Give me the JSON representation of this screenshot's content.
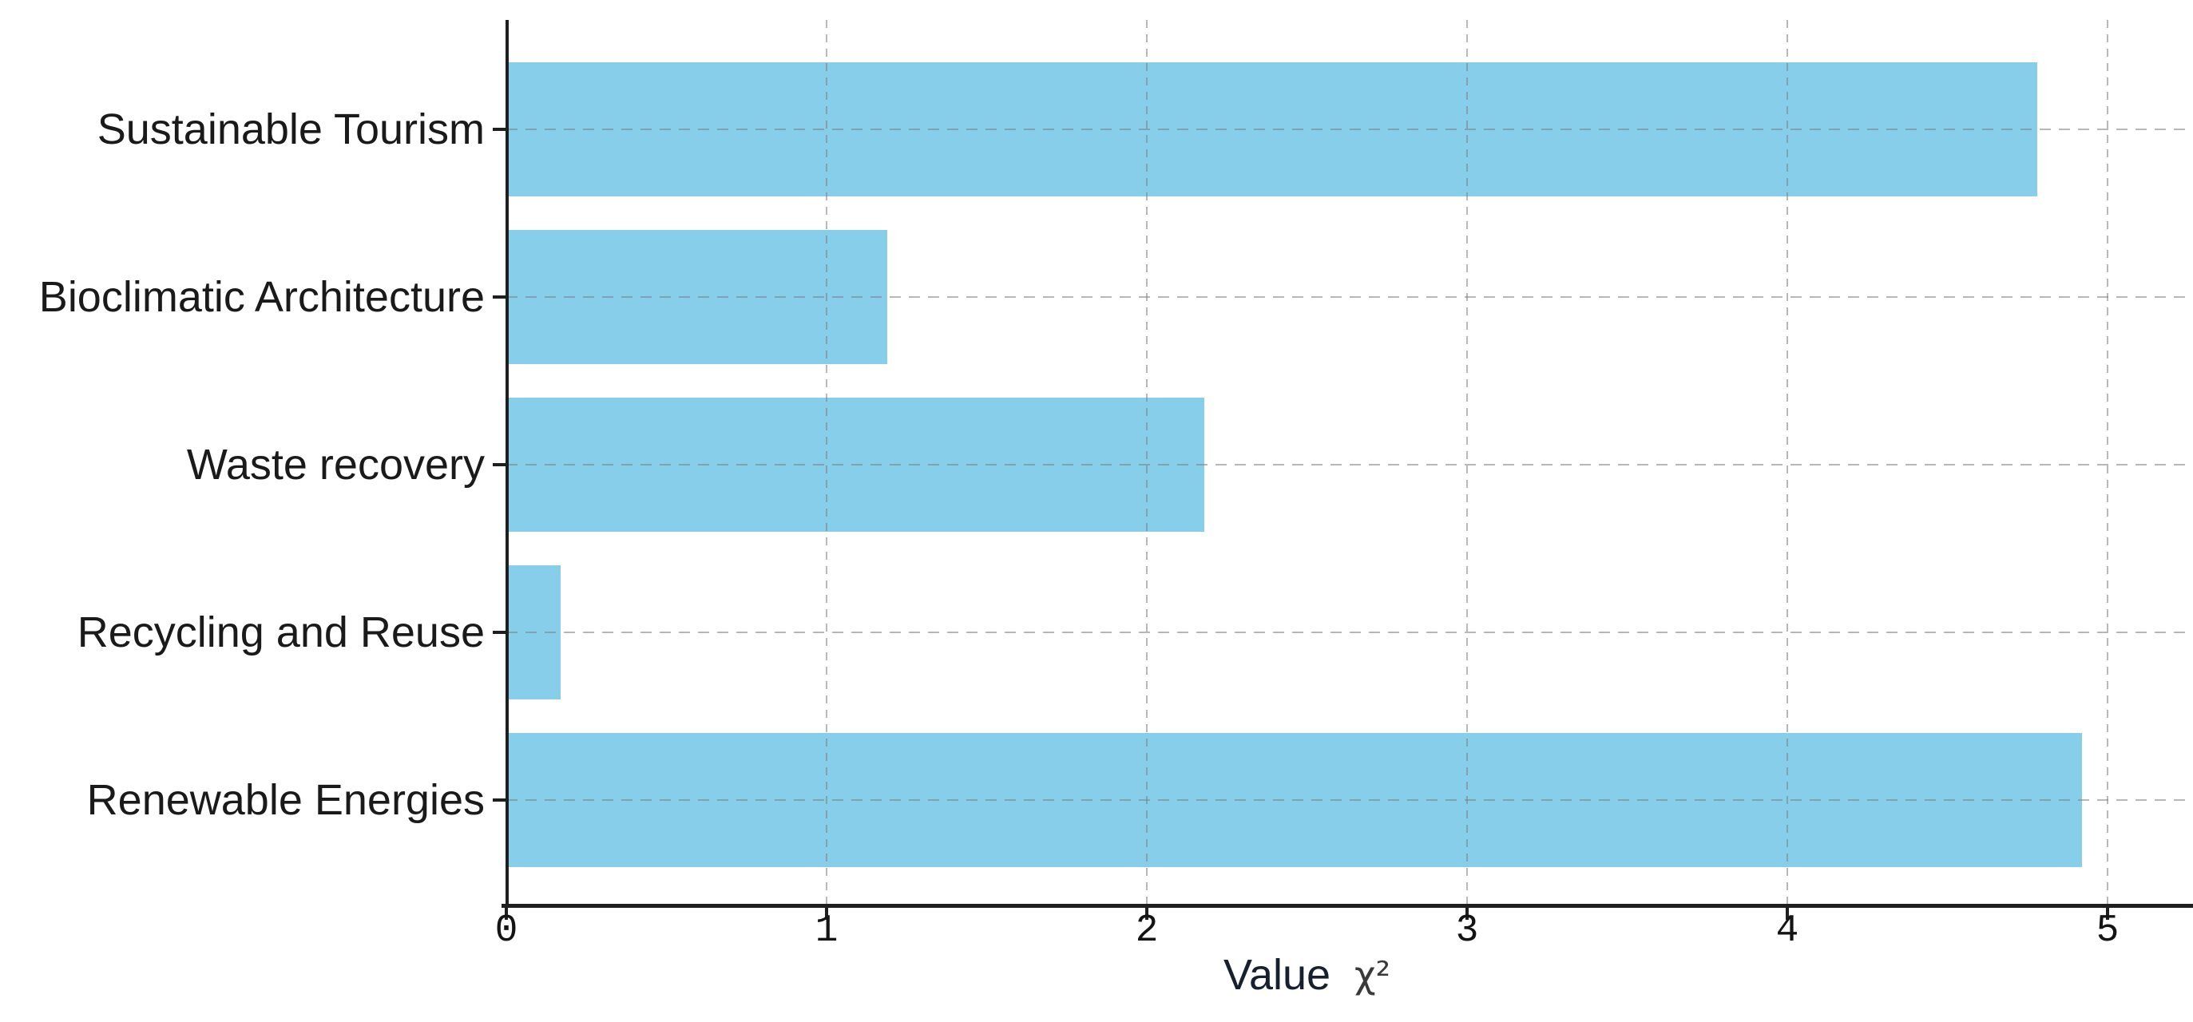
{
  "chart_data": {
    "type": "bar",
    "orientation": "horizontal",
    "title": "",
    "categories": [
      "Sustainable Tourism",
      "Bioclimatic Architecture",
      "Waste recovery",
      "Recycling and Reuse",
      "Renewable Energies"
    ],
    "values": [
      4.78,
      1.19,
      2.18,
      0.17,
      4.92
    ],
    "xlabel": "Value",
    "xlabel_symbol": "χ²",
    "ylabel": "",
    "xlim": [
      0,
      5
    ],
    "xticks": [
      "0",
      "1",
      "2",
      "3",
      "4",
      "5"
    ],
    "grid": "dashed light-gray, vertical at each x tick and horizontal at each category",
    "legend_position": "none",
    "bar_color": "#87CEEB",
    "axis_color": "#1f1f1f",
    "grid_color": "#7d7d7d",
    "label_color": "#1a1a1a",
    "tick_label_color": "#141414"
  }
}
